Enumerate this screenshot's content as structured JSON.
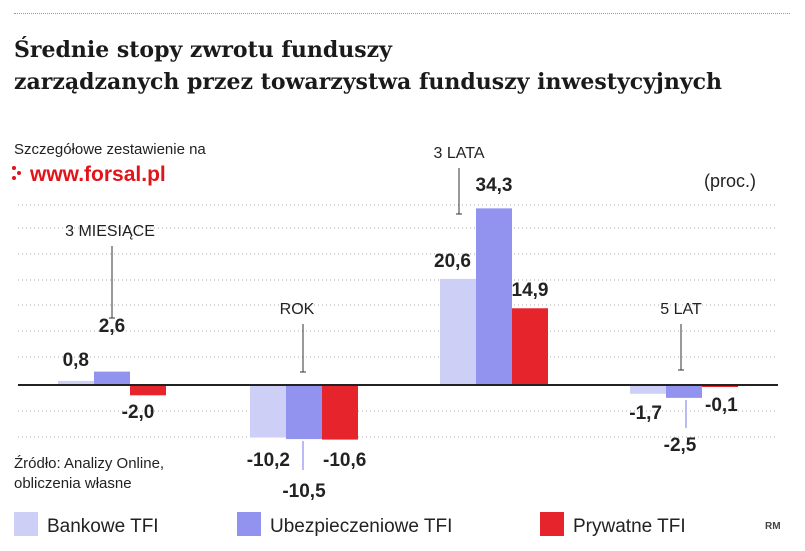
{
  "title_lines": [
    "Średnie stopy zwrotu funduszy",
    "zarządzanych przez towarzystwa funduszy inwestycyjnych"
  ],
  "source_note": "Szczegółowe zestawienie na",
  "brand": "www.forsal.pl",
  "source": [
    "Źródło: Analizy Online,",
    "obliczenia własne"
  ],
  "credit": "RM",
  "colors": {
    "bankowe": "#cdcff6",
    "ubezpieczeniowe": "#9193ee",
    "prywatne": "#e5242b"
  },
  "chart_data": {
    "type": "bar",
    "unit_label": "(proc.)",
    "categories": [
      "3 MIESIĄCE",
      "ROK",
      "3 LATA",
      "5 LAT"
    ],
    "series": [
      {
        "name": "Bankowe TFI",
        "values": [
          0.8,
          -10.2,
          20.6,
          -1.7
        ]
      },
      {
        "name": "Ubezpieczeniowe TFI",
        "values": [
          2.6,
          -10.5,
          34.3,
          -2.5
        ]
      },
      {
        "name": "Prywatne TFI",
        "values": [
          -2.0,
          -10.6,
          14.9,
          -0.1
        ]
      }
    ],
    "value_labels": [
      [
        "0,8",
        "2,6",
        "-2,0"
      ],
      [
        "-10,2",
        "-10,5",
        "-10,6"
      ],
      [
        "20,6",
        "34,3",
        "14,9"
      ],
      [
        "-1,7",
        "-2,5",
        "-0,1"
      ]
    ],
    "ylim": [
      -12,
      36
    ],
    "grid": true,
    "legend": "bottom"
  }
}
